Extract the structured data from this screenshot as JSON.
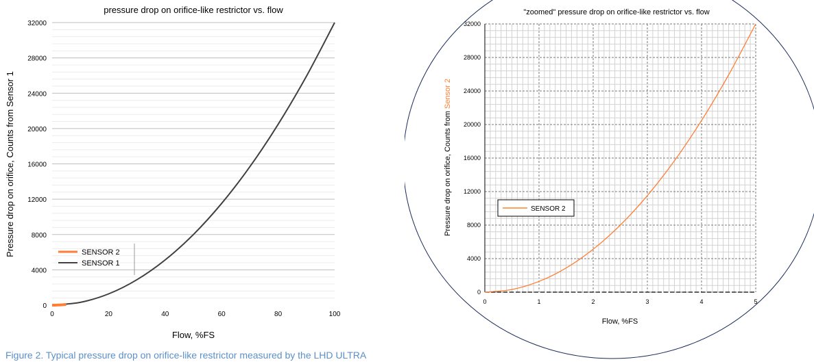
{
  "caption": "Figure 2. Typical pressure drop on orifice-like restrictor measured by the LHD ULTRA",
  "colors": {
    "sensor2": "#ff7e33",
    "sensor1": "#404040",
    "caption": "#5b8fc9"
  },
  "chart_data": [
    {
      "type": "line",
      "title": "pressure drop on orifice-like restrictor vs. flow",
      "xlabel": "Flow, %FS",
      "ylabel": "Pressure drop on orifice, Counts from Sensor 1",
      "xlim": [
        0,
        100
      ],
      "ylim": [
        0,
        32000
      ],
      "xticks": [
        0,
        20,
        40,
        60,
        80,
        100
      ],
      "yticks": [
        0,
        4000,
        8000,
        12000,
        16000,
        20000,
        24000,
        28000,
        32000
      ],
      "grid": "horizontal",
      "legend": "bottom-left",
      "series": [
        {
          "name": "SENSOR 2",
          "color": "#ff7e33",
          "x": [
            0,
            1,
            2,
            3,
            4,
            5
          ],
          "y": [
            0,
            3,
            13,
            29,
            51,
            80
          ]
        },
        {
          "name": "SENSOR 1",
          "color": "#404040",
          "x": [
            0,
            10,
            20,
            30,
            40,
            50,
            60,
            70,
            80,
            90,
            100
          ],
          "y": [
            0,
            320,
            1280,
            2880,
            5120,
            8000,
            11520,
            15680,
            20480,
            25920,
            32000
          ]
        }
      ]
    },
    {
      "type": "line",
      "title": "\"zoomed\" pressure drop on orifice-like restrictor vs. flow",
      "xlabel": "Flow, %FS",
      "ylabel_parts": [
        "Pressure drop on orifice, Counts from ",
        "Sensor 2"
      ],
      "xlim": [
        0,
        5
      ],
      "ylim": [
        0,
        32000
      ],
      "xticks": [
        0,
        1,
        2,
        3,
        4,
        5
      ],
      "yticks": [
        0,
        4000,
        8000,
        12000,
        16000,
        20000,
        24000,
        28000,
        32000
      ],
      "grid": "major and minor",
      "legend": "middle-left",
      "series": [
        {
          "name": "SENSOR 2",
          "color": "#ff7e33",
          "x": [
            0,
            0.5,
            1,
            1.5,
            2,
            2.5,
            3,
            3.5,
            4,
            4.5,
            5
          ],
          "y": [
            0,
            320,
            1280,
            2880,
            5120,
            8000,
            11520,
            15680,
            20480,
            25920,
            32000
          ]
        }
      ]
    }
  ]
}
